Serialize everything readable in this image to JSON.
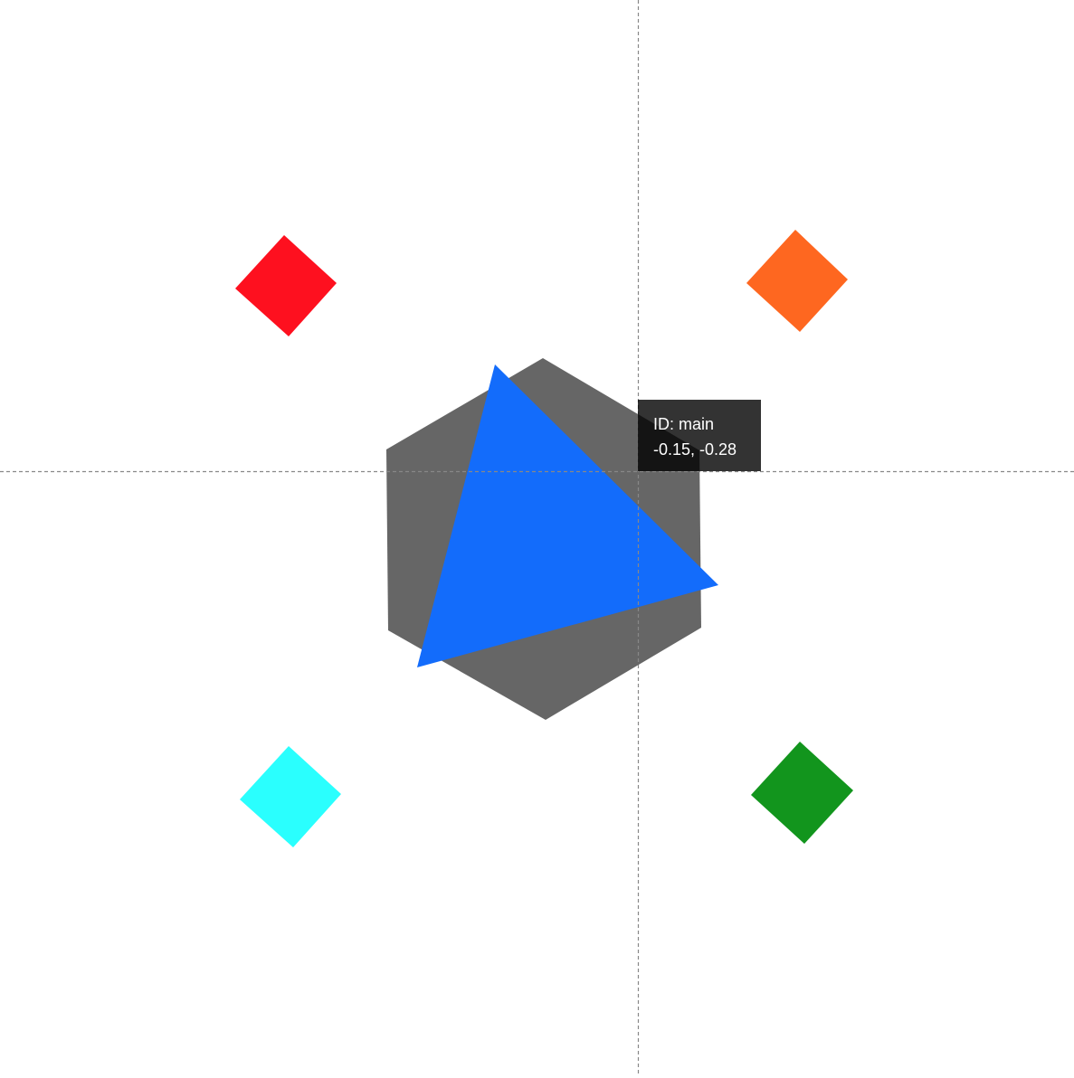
{
  "colors": {
    "background": "#ffffff",
    "hexagon": "#666666",
    "triangle": "#136cfb",
    "diamond_top_left": "#fe101f",
    "diamond_top_right": "#fe6720",
    "diamond_bottom_left": "#2afffe",
    "diamond_bottom_right": "#12951d",
    "crosshair": "#888888",
    "tooltip_background": "#000000",
    "tooltip_text": "#ffffff"
  },
  "shapes": [
    {
      "name": "hexagon-shape",
      "kind": "hexagon",
      "color_key": "hexagon"
    },
    {
      "name": "triangle-shape",
      "kind": "triangle",
      "color_key": "triangle"
    },
    {
      "name": "diamond-top-left",
      "kind": "diamond",
      "color_key": "diamond_top_left"
    },
    {
      "name": "diamond-top-right",
      "kind": "diamond",
      "color_key": "diamond_top_right"
    },
    {
      "name": "diamond-bottom-left",
      "kind": "diamond",
      "color_key": "diamond_bottom_left"
    },
    {
      "name": "diamond-bottom-right",
      "kind": "diamond",
      "color_key": "diamond_bottom_right"
    }
  ],
  "tooltip": {
    "id_line": "ID: main",
    "coords_line": "-0.15, -0.28"
  }
}
